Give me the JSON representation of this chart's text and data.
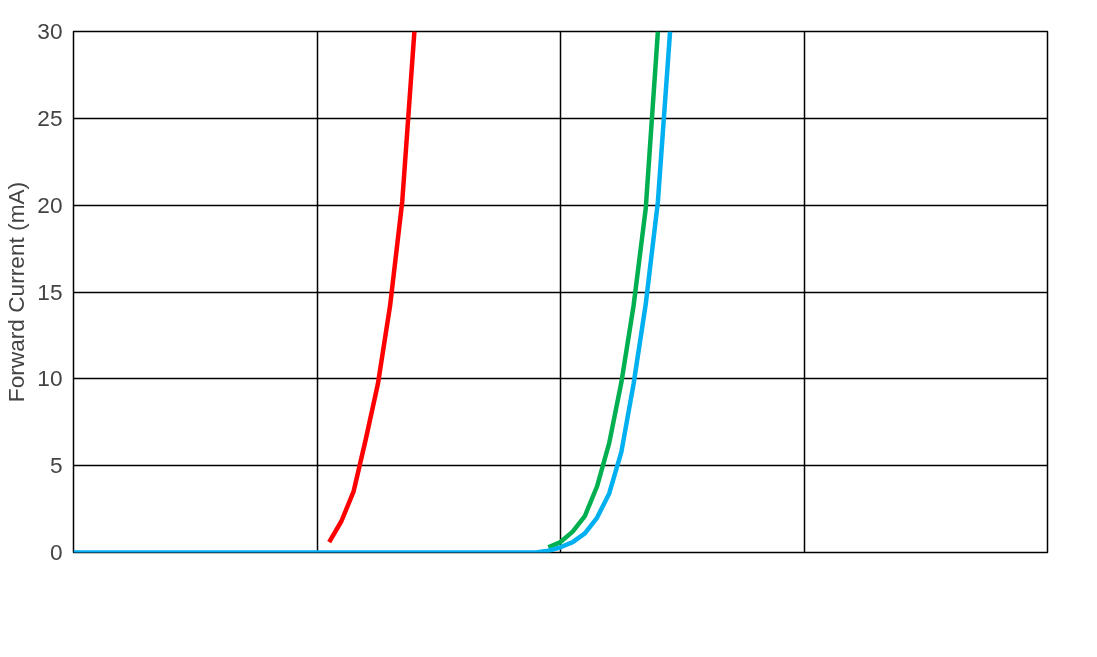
{
  "chart_data": {
    "type": "line",
    "ylabel": "Forward Current (mA)",
    "categories": [
      null,
      null,
      null,
      null,
      null,
      null,
      null,
      null,
      null,
      null,
      null,
      null,
      null,
      null,
      null,
      null,
      null,
      null,
      null,
      null,
      null,
      null,
      null,
      null,
      null,
      null,
      null,
      null,
      null,
      null,
      null,
      null,
      null,
      null,
      null,
      null,
      null,
      null,
      null,
      null,
      null,
      null,
      null,
      null,
      null,
      null,
      null,
      null,
      null,
      null,
      null,
      null,
      null,
      null,
      null,
      null,
      null,
      null,
      null,
      null,
      null,
      null,
      null,
      null,
      null,
      null,
      null,
      null,
      null,
      null,
      null,
      null,
      null,
      null,
      null,
      null,
      null,
      null,
      null,
      null,
      null
    ],
    "series": [
      {
        "color": "#ff0000",
        "values": [
          null,
          null,
          null,
          null,
          null,
          null,
          null,
          null,
          null,
          null,
          null,
          null,
          null,
          null,
          null,
          null,
          null,
          null,
          null,
          null,
          null,
          0.6,
          1.8,
          3.5,
          6.5,
          9.7,
          14.2,
          20.2,
          30,
          null,
          null,
          null,
          null,
          null,
          null,
          null,
          null,
          null,
          null,
          null,
          null,
          null,
          null,
          null,
          null,
          null,
          null,
          null,
          null,
          null,
          null,
          null,
          null,
          null,
          null,
          null,
          null,
          null,
          null,
          null,
          null,
          null,
          null,
          null,
          null,
          null,
          null,
          null,
          null,
          null,
          null,
          null,
          null,
          null,
          null,
          null,
          null,
          null,
          null,
          null,
          null
        ]
      },
      {
        "color": "#00b050",
        "values": [
          null,
          null,
          null,
          null,
          null,
          null,
          null,
          null,
          null,
          null,
          null,
          null,
          null,
          null,
          null,
          null,
          null,
          null,
          null,
          null,
          null,
          null,
          null,
          null,
          null,
          null,
          null,
          null,
          null,
          null,
          null,
          null,
          null,
          null,
          null,
          null,
          null,
          null,
          null,
          0.3,
          0.6,
          1.2,
          2.1,
          3.8,
          6.3,
          9.8,
          14.2,
          19.8,
          30,
          null,
          null,
          null,
          null,
          null,
          null,
          null,
          null,
          null,
          null,
          null,
          null,
          null,
          null,
          null,
          null,
          null,
          null,
          null,
          null,
          null,
          null,
          null,
          null,
          null,
          null,
          null,
          null,
          null,
          null,
          null,
          null
        ]
      },
      {
        "color": "#00b0f0",
        "values": [
          0,
          0,
          0,
          0,
          0,
          0,
          0,
          0,
          0,
          0,
          0,
          0,
          0,
          0,
          0,
          0,
          0,
          0,
          0,
          0,
          0,
          0,
          0,
          0,
          0,
          0,
          0,
          0,
          0,
          0,
          0,
          0,
          0,
          0,
          0,
          0,
          0,
          0,
          0,
          0.1,
          0.3,
          0.6,
          1.1,
          2.0,
          3.4,
          5.8,
          9.7,
          14.3,
          20.2,
          30,
          null,
          null,
          null,
          null,
          null,
          null,
          null,
          null,
          null,
          null,
          null,
          null,
          null,
          null,
          null,
          null,
          null,
          null,
          null,
          null,
          null,
          null,
          null,
          null,
          null,
          null,
          null,
          null,
          null,
          null,
          null
        ]
      }
    ],
    "ylim": [
      0,
      30
    ],
    "yticks": [
      0,
      5,
      10,
      15,
      20,
      25,
      30
    ],
    "grid": true,
    "marker": "none",
    "line_style": "solid",
    "tick_labels": "y"
  }
}
